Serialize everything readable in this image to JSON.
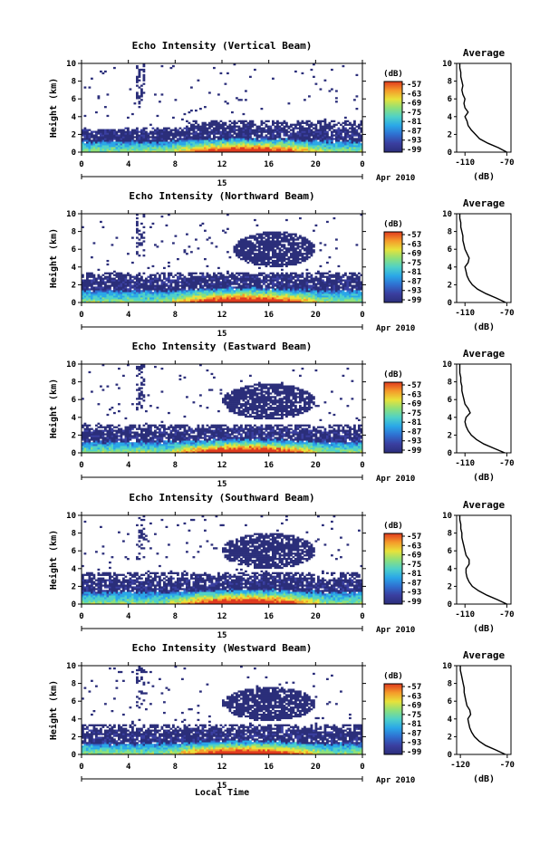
{
  "figure": {
    "bottom_xlabel": "Local Time",
    "date_day": "15",
    "date_label": "Apr 2010",
    "colorbar_unit": "(dB)",
    "colorbar_ticks": [
      "-57",
      "-63",
      "-69",
      "-75",
      "-81",
      "-87",
      "-93",
      "-99"
    ],
    "colormap": [
      "#2b2e7a",
      "#3a3fa0",
      "#2f6fd0",
      "#2aa7e8",
      "#4fd1c8",
      "#8ee07a",
      "#e8e23a",
      "#f59a2a",
      "#e03a1e"
    ]
  },
  "chart_data": [
    {
      "type": "heatmap",
      "title": "Echo Intensity (Vertical Beam)",
      "ylabel": "Height (km)",
      "x_ticks": [
        "0",
        "4",
        "8",
        "12",
        "16",
        "20",
        "0"
      ],
      "y_ticks": [
        "0",
        "2",
        "4",
        "6",
        "8",
        "10"
      ],
      "xlim": [
        0,
        24
      ],
      "ylim": [
        0,
        10
      ],
      "layers": {
        "surface_top": 1.2,
        "main_top": 2.6,
        "upper_top": 3.6,
        "upper_start": 9,
        "cloud": null
      },
      "profile": {
        "title": "Average",
        "xlabel": "(dB)",
        "x_ticks": [
          "-110",
          "-70"
        ],
        "xlim": [
          -118,
          -66
        ],
        "height": [
          0.0,
          0.5,
          1.0,
          1.5,
          2.0,
          2.5,
          3.0,
          3.5,
          4.0,
          4.5,
          5.0,
          5.5,
          6.0,
          6.5,
          7.0,
          7.5,
          8.0,
          8.5,
          9.0,
          9.5,
          10.0
        ],
        "value": [
          -70,
          -78,
          -88,
          -96,
          -100,
          -104,
          -107,
          -108,
          -110,
          -107,
          -110,
          -111,
          -110,
          -112,
          -113,
          -112,
          -113,
          -114,
          -114,
          -115,
          -115
        ]
      }
    },
    {
      "type": "heatmap",
      "title": "Echo Intensity (Northward Beam)",
      "ylabel": "Height (km)",
      "x_ticks": [
        "0",
        "4",
        "8",
        "12",
        "16",
        "20",
        "0"
      ],
      "y_ticks": [
        "0",
        "2",
        "4",
        "6",
        "8",
        "10"
      ],
      "xlim": [
        0,
        24
      ],
      "ylim": [
        0,
        10
      ],
      "layers": {
        "surface_top": 1.3,
        "main_top": 2.8,
        "upper_top": 3.4,
        "upper_start": 0,
        "cloud": {
          "x": [
            13,
            20
          ],
          "y": [
            4,
            8
          ]
        }
      },
      "profile": {
        "title": "Average",
        "xlabel": "(dB)",
        "x_ticks": [
          "-110",
          "-70"
        ],
        "xlim": [
          -118,
          -66
        ],
        "height": [
          0.0,
          0.5,
          1.0,
          1.5,
          2.0,
          2.5,
          3.0,
          3.5,
          4.0,
          4.5,
          5.0,
          5.5,
          6.0,
          6.5,
          7.0,
          7.5,
          8.0,
          8.5,
          9.0,
          9.5,
          10.0
        ],
        "value": [
          -71,
          -80,
          -90,
          -98,
          -103,
          -106,
          -108,
          -109,
          -110,
          -107,
          -106,
          -108,
          -110,
          -111,
          -112,
          -112,
          -113,
          -114,
          -114,
          -115,
          -115
        ]
      }
    },
    {
      "type": "heatmap",
      "title": "Echo Intensity (Eastward Beam)",
      "ylabel": "Height (km)",
      "x_ticks": [
        "0",
        "4",
        "8",
        "12",
        "16",
        "20",
        "0"
      ],
      "y_ticks": [
        "0",
        "2",
        "4",
        "6",
        "8",
        "10"
      ],
      "xlim": [
        0,
        24
      ],
      "ylim": [
        0,
        10
      ],
      "layers": {
        "surface_top": 1.2,
        "main_top": 2.6,
        "upper_top": 3.2,
        "upper_start": 0,
        "cloud": {
          "x": [
            12,
            20
          ],
          "y": [
            3.8,
            7.8
          ]
        }
      },
      "profile": {
        "title": "Average",
        "xlabel": "(dB)",
        "x_ticks": [
          "-110",
          "-70"
        ],
        "xlim": [
          -118,
          -66
        ],
        "height": [
          0.0,
          0.5,
          1.0,
          1.5,
          2.0,
          2.5,
          3.0,
          3.5,
          4.0,
          4.5,
          5.0,
          5.5,
          6.0,
          6.5,
          7.0,
          7.5,
          8.0,
          8.5,
          9.0,
          9.5,
          10.0
        ],
        "value": [
          -72,
          -82,
          -92,
          -99,
          -104,
          -107,
          -109,
          -110,
          -109,
          -105,
          -107,
          -110,
          -111,
          -112,
          -113,
          -113,
          -114,
          -114,
          -115,
          -115,
          -115
        ]
      }
    },
    {
      "type": "heatmap",
      "title": "Echo Intensity (Southward Beam)",
      "ylabel": "Height (km)",
      "x_ticks": [
        "0",
        "4",
        "8",
        "12",
        "16",
        "20",
        "0"
      ],
      "y_ticks": [
        "0",
        "2",
        "4",
        "6",
        "8",
        "10"
      ],
      "xlim": [
        0,
        24
      ],
      "ylim": [
        0,
        10
      ],
      "layers": {
        "surface_top": 1.3,
        "main_top": 2.8,
        "upper_top": 3.6,
        "upper_start": 0,
        "cloud": {
          "x": [
            12,
            20
          ],
          "y": [
            4,
            8
          ]
        }
      },
      "profile": {
        "title": "Average",
        "xlabel": "(dB)",
        "x_ticks": [
          "-110",
          "-70"
        ],
        "xlim": [
          -118,
          -66
        ],
        "height": [
          0.0,
          0.5,
          1.0,
          1.5,
          2.0,
          2.5,
          3.0,
          3.5,
          4.0,
          4.5,
          5.0,
          5.5,
          6.0,
          6.5,
          7.0,
          7.5,
          8.0,
          8.5,
          9.0,
          9.5,
          10.0
        ],
        "value": [
          -70,
          -79,
          -89,
          -97,
          -103,
          -106,
          -108,
          -109,
          -109,
          -106,
          -106,
          -109,
          -110,
          -111,
          -112,
          -113,
          -113,
          -114,
          -114,
          -115,
          -115
        ]
      }
    },
    {
      "type": "heatmap",
      "title": "Echo Intensity (Westward Beam)",
      "ylabel": "Height (km)",
      "x_ticks": [
        "0",
        "4",
        "8",
        "12",
        "16",
        "20",
        "0"
      ],
      "y_ticks": [
        "0",
        "2",
        "4",
        "6",
        "8",
        "10"
      ],
      "xlim": [
        0,
        24
      ],
      "ylim": [
        0,
        10
      ],
      "layers": {
        "surface_top": 1.2,
        "main_top": 2.7,
        "upper_top": 3.4,
        "upper_start": 0,
        "cloud": {
          "x": [
            12,
            20
          ],
          "y": [
            3.8,
            7.6
          ]
        }
      },
      "profile": {
        "title": "Average",
        "xlabel": "(dB)",
        "x_ticks": [
          "-120",
          "-70"
        ],
        "xlim": [
          -124,
          -66
        ],
        "height": [
          0.0,
          0.5,
          1.0,
          1.5,
          2.0,
          2.5,
          3.0,
          3.5,
          4.0,
          4.5,
          5.0,
          5.5,
          6.0,
          6.5,
          7.0,
          7.5,
          8.0,
          8.5,
          9.0,
          9.5,
          10.0
        ],
        "value": [
          -72,
          -82,
          -93,
          -100,
          -105,
          -108,
          -110,
          -111,
          -112,
          -109,
          -110,
          -113,
          -114,
          -115,
          -116,
          -116,
          -117,
          -118,
          -119,
          -120,
          -120
        ]
      }
    }
  ]
}
